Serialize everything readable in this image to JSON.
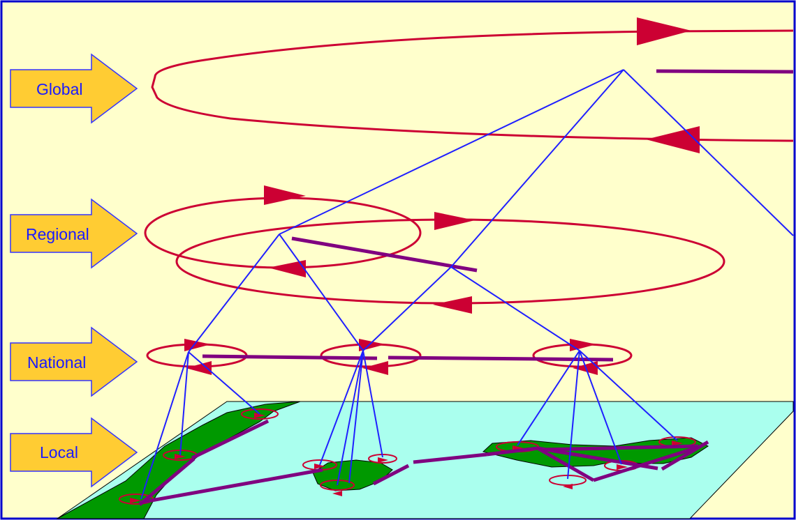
{
  "levels": [
    {
      "id": "global",
      "label": "Global"
    },
    {
      "id": "regional",
      "label": "Regional"
    },
    {
      "id": "national",
      "label": "National"
    },
    {
      "id": "local",
      "label": "Local"
    }
  ],
  "colors": {
    "background": "#ffffcc",
    "frame": "#0000cc",
    "arrow_fill": "#ffcc33",
    "arrow_stroke": "#3333ff",
    "label_text": "#1a1aff",
    "circulation_loop": "#cc0033",
    "interconnect_line": "#800080",
    "hierarchy_link": "#1f1fff",
    "sea": "#aaffee",
    "land": "#009900"
  }
}
